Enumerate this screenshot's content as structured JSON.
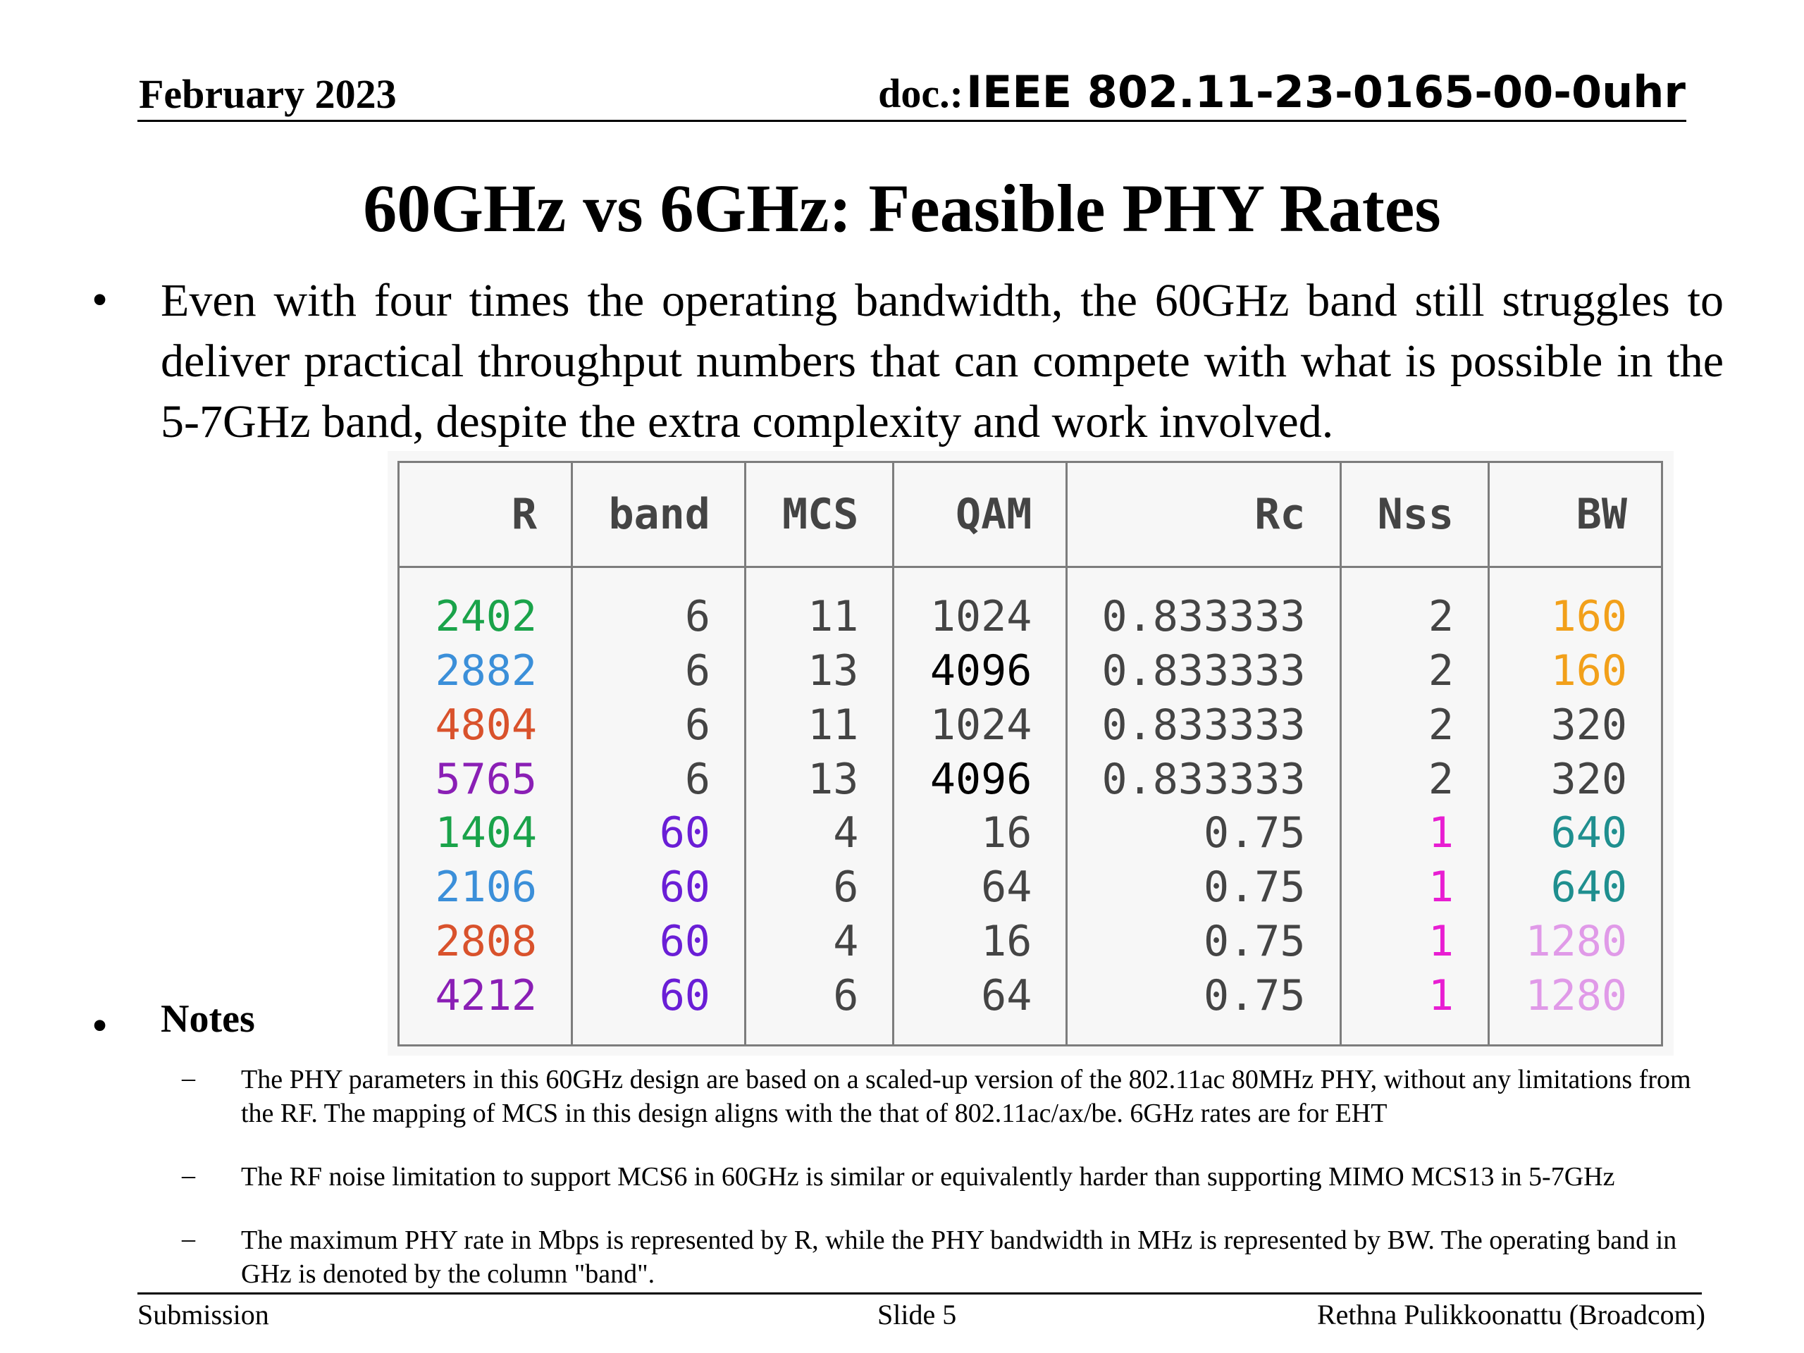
{
  "header": {
    "date": "February 2023",
    "doc_label": "doc.:",
    "doc_number": "IEEE 802.11-23-0165-00-0uhr"
  },
  "title": "60GHz vs 6GHz: Feasible PHY Rates",
  "bullets": {
    "main": "Even with four times the operating bandwidth, the 60GHz band still struggles to deliver practical throughput numbers that can compete with what is possible in the 5-7GHz band, despite the extra complexity and work involved.",
    "notes_heading": "Notes",
    "notes": [
      "The PHY parameters in this 60GHz design are based on a scaled-up version of the 802.11ac 80MHz PHY, without any limitations from the RF. The mapping of MCS in this design aligns with the that of 802.11ac/ax/be. 6GHz rates are for EHT",
      "The RF noise limitation to support MCS6 in 60GHz is similar or equivalently harder than supporting MIMO MCS13 in 5-7GHz",
      "The maximum PHY rate in Mbps is represented by R, while the PHY bandwidth in MHz is represented by BW. The operating band in GHz is denoted by the column \"band\"."
    ],
    "dash": "–",
    "dot": "•"
  },
  "table": {
    "columns": [
      "R",
      "band",
      "MCS",
      "QAM",
      "Rc",
      "Nss",
      "BW"
    ],
    "rows": [
      [
        "2402",
        "6",
        "11",
        "1024",
        "0.833333",
        "2",
        "160"
      ],
      [
        "2882",
        "6",
        "13",
        "4096",
        "0.833333",
        "2",
        "160"
      ],
      [
        "4804",
        "6",
        "11",
        "1024",
        "0.833333",
        "2",
        "320"
      ],
      [
        "5765",
        "6",
        "13",
        "4096",
        "0.833333",
        "2",
        "320"
      ],
      [
        "1404",
        "60",
        "4",
        "16",
        "0.75",
        "1",
        "640"
      ],
      [
        "2106",
        "60",
        "6",
        "64",
        "0.75",
        "1",
        "640"
      ],
      [
        "2808",
        "60",
        "4",
        "16",
        "0.75",
        "1",
        "1280"
      ],
      [
        "4212",
        "60",
        "6",
        "64",
        "0.75",
        "1",
        "1280"
      ]
    ],
    "colors": {
      "R": [
        "#1aa34a",
        "#3b8fd9",
        "#d9522c",
        "#8a1fb5",
        "#1aa34a",
        "#3b8fd9",
        "#d9522c",
        "#8a1fb5"
      ],
      "band": [
        "#444444",
        "#444444",
        "#444444",
        "#444444",
        "#6a1ed6",
        "#6a1ed6",
        "#6a1ed6",
        "#6a1ed6"
      ],
      "MCS": [
        "#444444",
        "#444444",
        "#444444",
        "#444444",
        "#444444",
        "#444444",
        "#444444",
        "#444444"
      ],
      "QAM": [
        "#444444",
        "#000000",
        "#444444",
        "#000000",
        "#444444",
        "#444444",
        "#444444",
        "#444444"
      ],
      "Rc": [
        "#444444",
        "#444444",
        "#444444",
        "#444444",
        "#444444",
        "#444444",
        "#444444",
        "#444444"
      ],
      "Nss": [
        "#444444",
        "#444444",
        "#444444",
        "#444444",
        "#e81ed2",
        "#e81ed2",
        "#e81ed2",
        "#e81ed2"
      ],
      "BW": [
        "#f2a01a",
        "#f2a01a",
        "#444444",
        "#444444",
        "#1f8f8f",
        "#1f8f8f",
        "#e09ae8",
        "#e09ae8"
      ]
    }
  },
  "footer": {
    "left": "Submission",
    "center": "Slide 5",
    "right": "Rethna Pulikkoonattu (Broadcom)"
  }
}
